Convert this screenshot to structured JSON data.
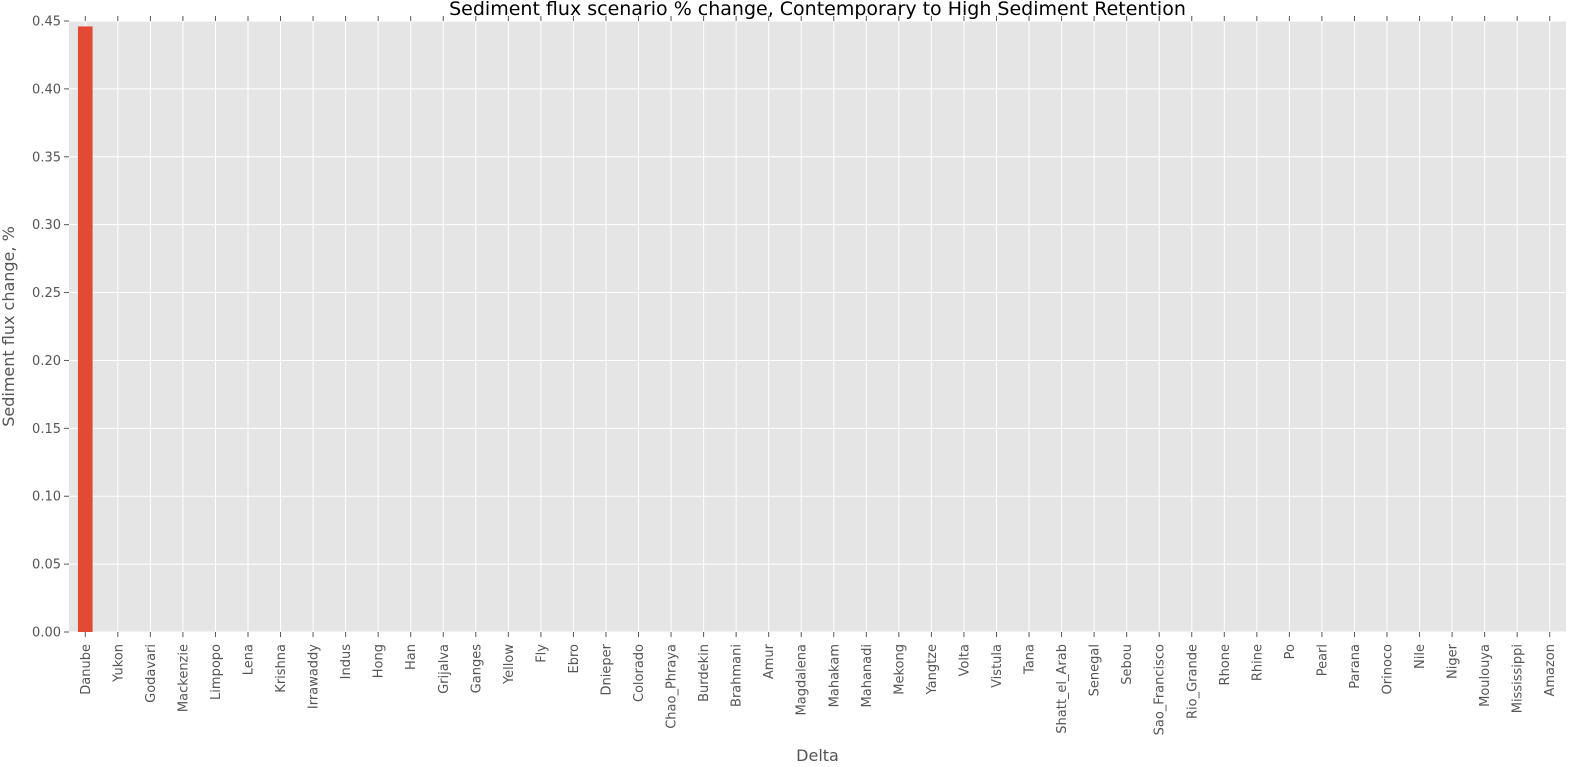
{
  "chart_data": {
    "type": "bar",
    "title": "Sediment flux scenario % change, Contemporary to High Sediment Retention",
    "xlabel": "Delta",
    "ylabel": "Sediment flux change, %",
    "ylim": [
      0,
      0.45
    ],
    "yticks": [
      "0.00",
      "0.05",
      "0.10",
      "0.15",
      "0.20",
      "0.25",
      "0.30",
      "0.35",
      "0.40",
      "0.45"
    ],
    "grid": true,
    "categories": [
      "Danube",
      "Yukon",
      "Godavari",
      "Mackenzie",
      "Limpopo",
      "Lena",
      "Krishna",
      "Irrawaddy",
      "Indus",
      "Hong",
      "Han",
      "Grijalva",
      "Ganges",
      "Yellow",
      "Fly",
      "Ebro",
      "Dnieper",
      "Colorado",
      "Chao_Phraya",
      "Burdekin",
      "Brahmani",
      "Amur",
      "Magdalena",
      "Mahakam",
      "Mahanadi",
      "Mekong",
      "Yangtze",
      "Volta",
      "Vistula",
      "Tana",
      "Shatt_el_Arab",
      "Senegal",
      "Sebou",
      "Sao_Francisco",
      "Rio_Grande",
      "Rhone",
      "Rhine",
      "Po",
      "Pearl",
      "Parana",
      "Orinoco",
      "Nile",
      "Niger",
      "Moulouya",
      "Mississippi",
      "Amazon"
    ],
    "values": [
      0.446,
      0,
      0,
      0,
      0,
      0,
      0,
      0,
      0,
      0,
      0,
      0,
      0,
      0,
      0,
      0,
      0,
      0,
      0,
      0,
      0,
      0,
      0,
      0,
      0,
      0,
      0,
      0,
      0,
      0,
      0,
      0,
      0,
      0,
      0,
      0,
      0,
      0,
      0,
      0,
      0,
      0,
      0,
      0,
      0,
      0
    ],
    "colors": {
      "bar": "#E24A33",
      "plot_bg": "#E5E5E5",
      "grid": "#FFFFFF",
      "text": "#555555"
    }
  }
}
